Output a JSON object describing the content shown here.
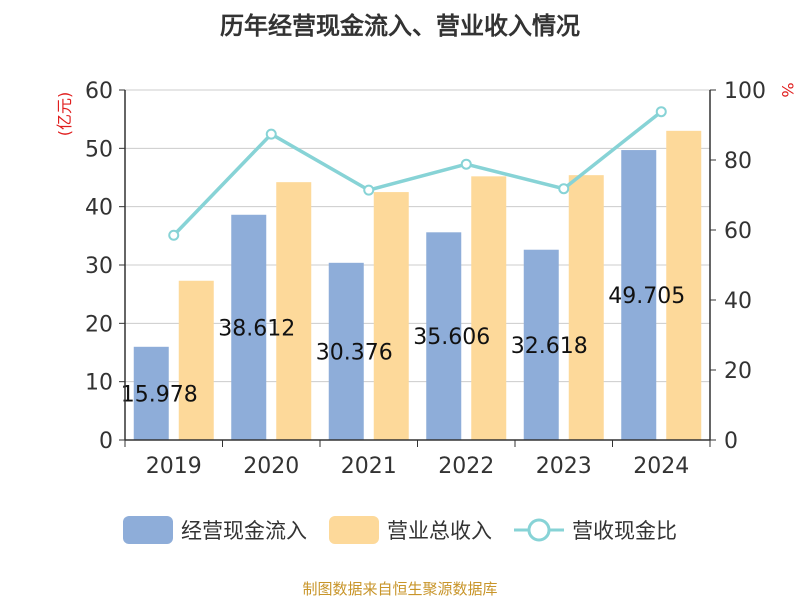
{
  "title": "历年经营现金流入、营业收入情况",
  "footer": "制图数据来自恒生聚源数据库",
  "chart_data": {
    "type": "bar",
    "categories": [
      "2019",
      "2020",
      "2021",
      "2022",
      "2023",
      "2024"
    ],
    "series": [
      {
        "name": "经营现金流入",
        "type": "bar",
        "axis": "left",
        "values": [
          15.978,
          38.612,
          30.376,
          35.606,
          32.618,
          49.705
        ],
        "labels": [
          "15.978",
          "38.612",
          "30.376",
          "35.606",
          "32.618",
          "49.705"
        ],
        "color": "#8eadd9"
      },
      {
        "name": "营业总收入",
        "type": "bar",
        "axis": "left",
        "values": [
          27.3,
          44.2,
          42.5,
          45.2,
          45.4,
          53.0
        ],
        "color": "#fdd99a"
      },
      {
        "name": "营收现金比",
        "type": "line",
        "axis": "right",
        "values": [
          58.5,
          87.4,
          71.4,
          78.8,
          71.8,
          93.8
        ],
        "color": "#87d3d6"
      }
    ],
    "left_axis": {
      "label": "(亿元)",
      "ylim": [
        0,
        60
      ],
      "ticks": [
        0,
        10,
        20,
        30,
        40,
        50,
        60
      ]
    },
    "right_axis": {
      "label": "%",
      "ylim": [
        0,
        100
      ],
      "ticks": [
        0,
        20,
        40,
        60,
        80,
        100
      ]
    },
    "grid": true,
    "legend_position": "bottom"
  },
  "colors": {
    "axis_label_red": "#e01e1e",
    "footer": "#c8952a",
    "grid": "#cccccc"
  }
}
